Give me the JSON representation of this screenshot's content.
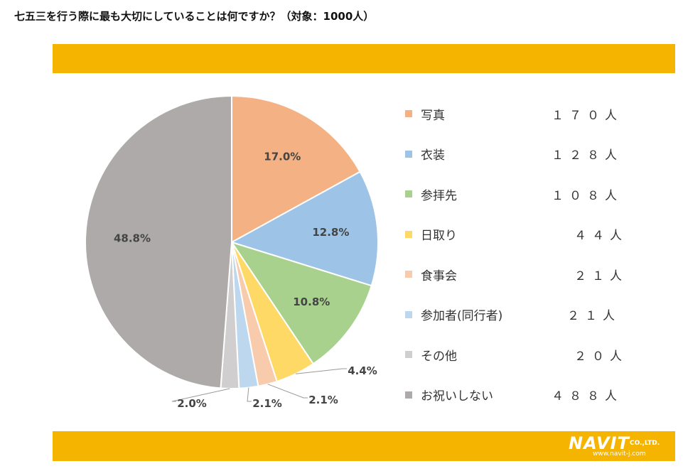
{
  "title": "七五三を行う際に最も大切にしていることは何ですか？（対象：1000人）",
  "colors": {
    "band": "#f5b400"
  },
  "logo": {
    "name": "NAVIT",
    "company": "CO.,LTD.",
    "url": "www.navit-j.com"
  },
  "chart_data": {
    "type": "pie",
    "start": "12 o'clock, clockwise",
    "slices": [
      {
        "name": "写真",
        "percent": 17.0,
        "label": "17.0%",
        "count": "１７０人",
        "color": "#f4b183"
      },
      {
        "name": "衣装",
        "percent": 12.8,
        "label": "12.8%",
        "count": "１２８人",
        "color": "#9dc3e6"
      },
      {
        "name": "参拝先",
        "percent": 10.8,
        "label": "10.8%",
        "count": "１０８人",
        "color": "#a9d18e"
      },
      {
        "name": "日取り",
        "percent": 4.4,
        "label": "4.4%",
        "count": "４４人",
        "color": "#ffd966"
      },
      {
        "name": "食事会",
        "percent": 2.1,
        "label": "2.1%",
        "count": "２１人",
        "color": "#f8cbad"
      },
      {
        "name": "参加者(同行者)",
        "percent": 2.1,
        "label": "2.1%",
        "count": "２１人",
        "color": "#bdd7ee"
      },
      {
        "name": "その他",
        "percent": 2.0,
        "label": "2.0%",
        "count": "２０人",
        "color": "#d0cece"
      },
      {
        "name": "お祝いしない",
        "percent": 48.8,
        "label": "48.8%",
        "count": "４８８人",
        "color": "#aeaaaa"
      }
    ],
    "legend_position": "right"
  }
}
